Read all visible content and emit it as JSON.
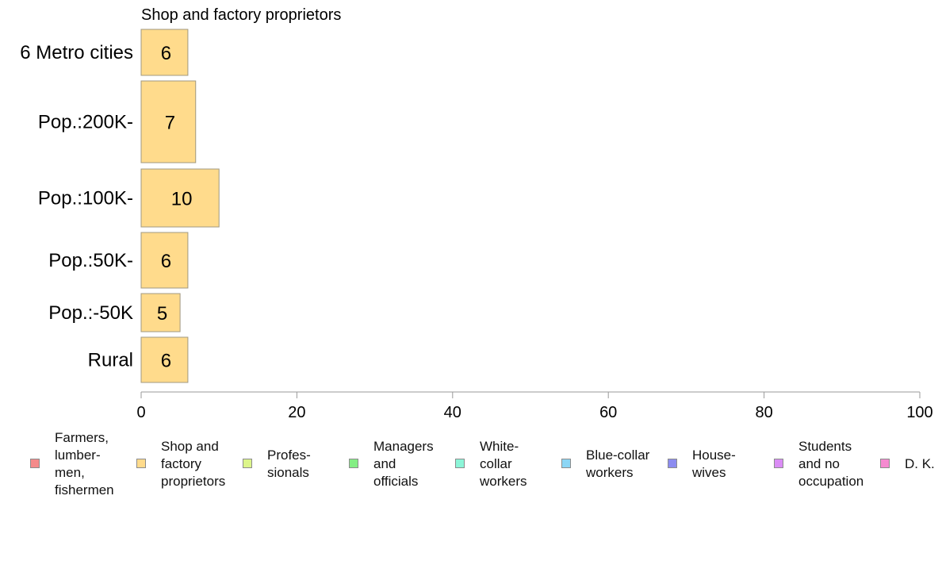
{
  "chart_data": {
    "type": "bar",
    "orientation": "horizontal",
    "title": "Shop and factory proprietors",
    "xlabel": "",
    "ylabel": "",
    "xlim": [
      0,
      100
    ],
    "x_ticks": [
      "0",
      "20",
      "40",
      "60",
      "80",
      "100"
    ],
    "grid": false,
    "categories": [
      "6 Metro cities",
      "Pop.:200K-",
      "Pop.:100K-",
      "Pop.:50K-",
      "Pop.:-50K",
      "Rural"
    ],
    "series": [
      {
        "name": "Shop and factory proprietors",
        "color": "#ffdb8c",
        "values": [
          6,
          7,
          10,
          6,
          5,
          6
        ]
      }
    ],
    "data_labels": [
      "6",
      "7",
      "10",
      "6",
      "5",
      "6"
    ],
    "legend_placement": "bottom",
    "legend": [
      {
        "label": "Farmers, lumber- men, fishermen",
        "lines": [
          "Farmers,",
          "lumber-",
          "men,",
          "fishermen"
        ],
        "color": "#f48a8a"
      },
      {
        "label": "Shop and factory proprietors",
        "lines": [
          "Shop and",
          "factory",
          "proprietors"
        ],
        "color": "#ffdb8c"
      },
      {
        "label": "Profes- sionals",
        "lines": [
          "Profes-",
          "sionals"
        ],
        "color": "#dcf58a"
      },
      {
        "label": "Managers and officials",
        "lines": [
          "Managers",
          "and",
          "officials"
        ],
        "color": "#84ee84"
      },
      {
        "label": "White- collar workers",
        "lines": [
          "White-",
          "collar",
          "workers"
        ],
        "color": "#8cf5d8"
      },
      {
        "label": "Blue-collar workers",
        "lines": [
          "Blue-collar",
          "workers"
        ],
        "color": "#8cd6f5"
      },
      {
        "label": "House- wives",
        "lines": [
          "House-",
          "wives"
        ],
        "color": "#8c8cf0"
      },
      {
        "label": "Students and no occupation",
        "lines": [
          "Students",
          "and no",
          "occupation"
        ],
        "color": "#da8cf5"
      },
      {
        "label": "D. K.",
        "lines": [
          "D. K."
        ],
        "color": "#f58ad0"
      }
    ]
  }
}
